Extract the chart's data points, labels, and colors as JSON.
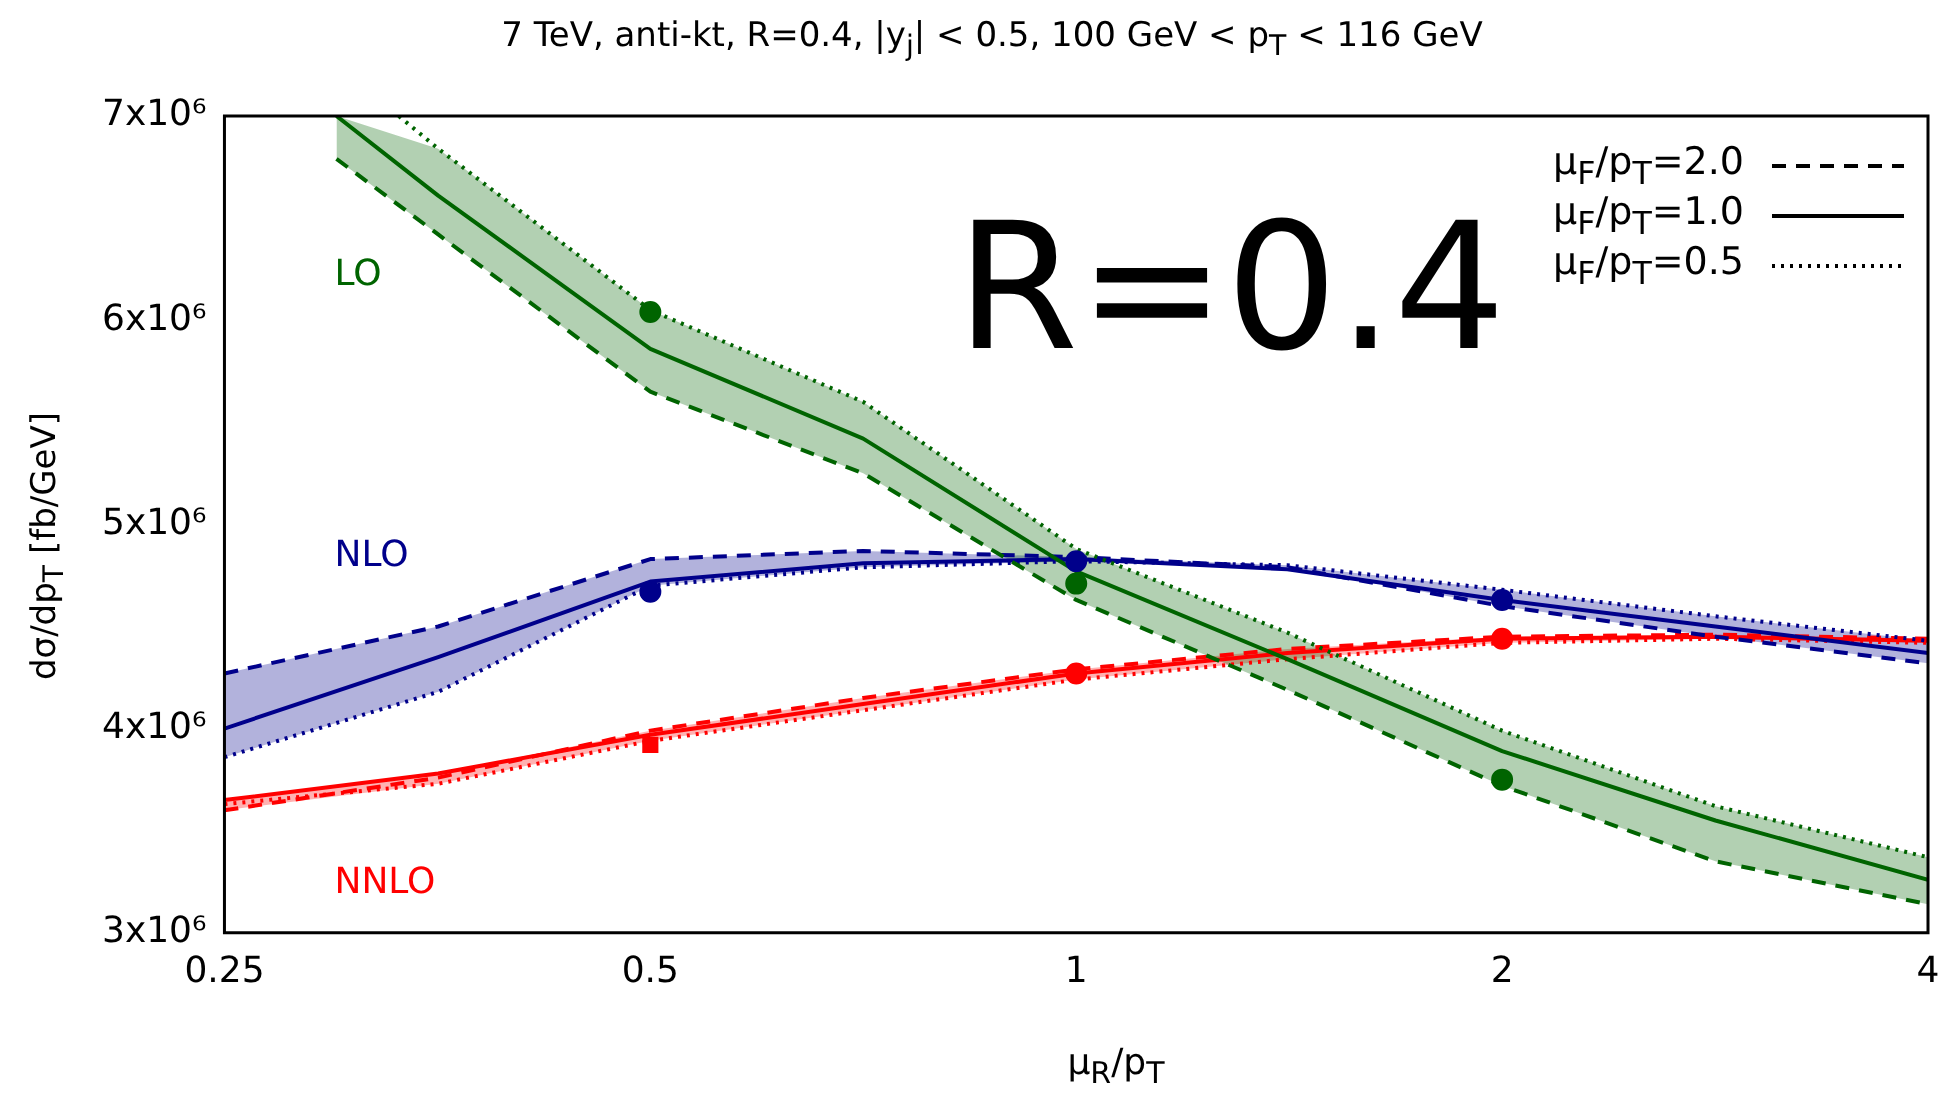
{
  "chart_data": {
    "type": "line",
    "title": "7 TeV, anti-kt, R=0.4, |y$_{j}$| < 0.5, 100 GeV < p$_{T}$ < 116 GeV",
    "xlabel": "μ$_{R}$/p$_{T}$",
    "ylabel": "dσ/dp$_{T}$ [fb/GeV]",
    "annotations": [
      "R=0.4"
    ],
    "log": "x",
    "legend": "top right",
    "x": [
      0.25,
      0.354,
      0.5,
      0.707,
      1,
      1.41,
      2,
      2.83,
      4
    ],
    "xlim": [
      0.25,
      4
    ],
    "xticks": [
      0.25,
      0.5,
      1,
      2,
      4
    ],
    "ylim": [
      3000000.0,
      7000000.0
    ],
    "yticks": [
      {
        "value": 3000000.0,
        "label": "3x10⁶"
      },
      {
        "value": 4000000.0,
        "label": "4x10⁶"
      },
      {
        "value": 5000000.0,
        "label": "5x10⁶"
      },
      {
        "value": 6000000.0,
        "label": "6x10⁶"
      },
      {
        "value": 7000000.0,
        "label": "7x10⁶"
      }
    ],
    "series": [
      {
        "name": "μ$_{F}$/p$_{T}$=2.0",
        "color": "#000000",
        "line_style": "dashed",
        "values": [
          null,
          null,
          null,
          null,
          null,
          null,
          null,
          null,
          null
        ]
      },
      {
        "name": "μ$_{F}$/p$_{T}$=1.0",
        "color": "#000000",
        "line_style": "solid",
        "values": [
          null,
          null,
          null,
          null,
          null,
          null,
          null,
          null,
          null
        ]
      },
      {
        "name": "μ$_{F}$/p$_{T}$=0.5",
        "color": "#000000",
        "line_style": "dotted",
        "values": [
          null,
          null,
          null,
          null,
          null,
          null,
          null,
          null,
          null
        ]
      },
      {
        "color": "#006400",
        "line_style": "dashed",
        "x": [
          0.3,
          0.354,
          0.5,
          0.707,
          1,
          1.41,
          2,
          2.83,
          4
        ],
        "values": [
          6790000.0,
          6420000.0,
          5650000.0,
          5250000.0,
          4630000.0,
          4190000.0,
          3720000.0,
          3350000.0,
          3140000.0
        ]
      },
      {
        "name": "LO",
        "color": "#006400",
        "line_style": "solid",
        "x": [
          0.3,
          0.354,
          0.5,
          0.707,
          1,
          1.41,
          2,
          2.83,
          4
        ],
        "values": [
          7000000.0,
          6610000.0,
          5860000.0,
          5420000.0,
          4770000.0,
          4340000.0,
          3890000.0,
          3550000.0,
          3260000.0
        ],
        "lower": [
          6790000.0,
          6420000.0,
          5650000.0,
          5250000.0,
          4630000.0,
          4190000.0,
          3720000.0,
          3350000.0,
          3140000.0
        ],
        "upper": [
          7000000.0,
          6840000.0,
          6050000.0,
          5600000.0,
          4880000.0,
          4470000.0,
          3990000.0,
          3620000.0,
          3370000.0
        ]
      },
      {
        "color": "#006400",
        "line_style": "dotted",
        "x": [
          0.332,
          0.354,
          0.5,
          0.707,
          1,
          1.41,
          2,
          2.83,
          4
        ],
        "values": [
          7000000.0,
          6840000.0,
          6050000.0,
          5600000.0,
          4880000.0,
          4470000.0,
          3990000.0,
          3620000.0,
          3370000.0
        ]
      },
      {
        "type": "scatter",
        "color": "#006400",
        "marker": "circle",
        "x": [
          0.5,
          1,
          2
        ],
        "values": [
          6040000.0,
          4710000.0,
          3750000.0
        ]
      },
      {
        "color": "#00008b",
        "line_style": "dashed",
        "values": [
          4270000.0,
          4500000.0,
          4830000.0,
          4870000.0,
          4840000.0,
          4790000.0,
          4600000.0,
          4450000.0,
          4320000.0
        ]
      },
      {
        "name": "NLO",
        "color": "#00008b",
        "line_style": "solid",
        "values": [
          4000000.0,
          4350000.0,
          4720000.0,
          4810000.0,
          4830000.0,
          4780000.0,
          4630000.0,
          4500000.0,
          4370000.0
        ],
        "lower": [
          3860000.0,
          4180000.0,
          4700000.0,
          4790000.0,
          4820000.0,
          4790000.0,
          4600000.0,
          4450000.0,
          4320000.0
        ],
        "upper": [
          4270000.0,
          4500000.0,
          4830000.0,
          4870000.0,
          4840000.0,
          4800000.0,
          4680000.0,
          4550000.0,
          4430000.0
        ]
      },
      {
        "color": "#00008b",
        "line_style": "dotted",
        "values": [
          3860000.0,
          4180000.0,
          4700000.0,
          4790000.0,
          4820000.0,
          4800000.0,
          4680000.0,
          4550000.0,
          4430000.0
        ]
      },
      {
        "type": "scatter",
        "color": "#00008b",
        "marker": "circle",
        "x": [
          0.5,
          1,
          2
        ],
        "values": [
          4670000.0,
          4820000.0,
          4630000.0
        ]
      },
      {
        "color": "#ff0000",
        "line_style": "dashed",
        "values": [
          3600000.0,
          3760000.0,
          3990000.0,
          4150000.0,
          4290000.0,
          4390000.0,
          4450000.0,
          4460000.0,
          4440000.0
        ]
      },
      {
        "name": "NNLO",
        "color": "#ff0000",
        "line_style": "solid",
        "values": [
          3650000.0,
          3780000.0,
          3970000.0,
          4120000.0,
          4270000.0,
          4370000.0,
          4440000.0,
          4450000.0,
          4430000.0
        ],
        "lower": [
          3600000.0,
          3730000.0,
          3940000.0,
          4090000.0,
          4240000.0,
          4340000.0,
          4420000.0,
          4440000.0,
          4420000.0
        ],
        "upper": [
          3650000.0,
          3780000.0,
          3990000.0,
          4150000.0,
          4290000.0,
          4390000.0,
          4450000.0,
          4460000.0,
          4440000.0
        ]
      },
      {
        "color": "#ff0000",
        "line_style": "dotted",
        "values": [
          3630000.0,
          3730000.0,
          3940000.0,
          4090000.0,
          4240000.0,
          4340000.0,
          4420000.0,
          4440000.0,
          4420000.0
        ]
      },
      {
        "type": "scatter",
        "color": "#ff0000",
        "marker": "square",
        "x": [
          0.5
        ],
        "values": [
          3920000.0
        ]
      },
      {
        "type": "scatter",
        "color": "#ff0000",
        "marker": "circle",
        "x": [
          1,
          2
        ],
        "values": [
          4270000.0,
          4440000.0
        ]
      }
    ]
  }
}
